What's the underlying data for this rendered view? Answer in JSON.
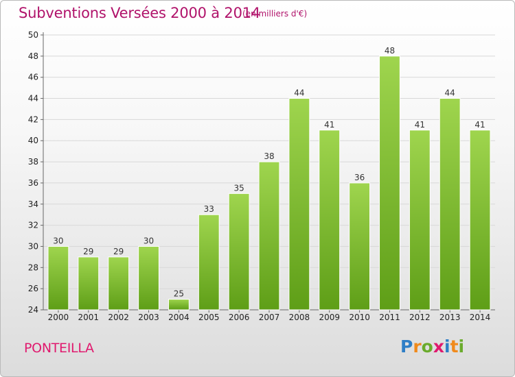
{
  "header": {
    "title": "Subventions Versées 2000 à 2014",
    "unit_note": "(en milliers d'€)"
  },
  "footer": {
    "town": "PONTEILLA",
    "logo_text": "Proxiti",
    "logo_letters": [
      {
        "ch": "P",
        "color": "#2e7ec6"
      },
      {
        "ch": "r",
        "color": "#f08a1c"
      },
      {
        "ch": "o",
        "color": "#6aab2c"
      },
      {
        "ch": "x",
        "color": "#e0196e"
      },
      {
        "ch": "i",
        "color": "#2e7ec6"
      },
      {
        "ch": "t",
        "color": "#f08a1c"
      },
      {
        "ch": "i",
        "color": "#6aab2c"
      }
    ]
  },
  "chart_data": {
    "type": "bar",
    "title": "Subventions Versées 2000 à 2014",
    "subtitle": "(en milliers d'€)",
    "categories": [
      "2000",
      "2001",
      "2002",
      "2003",
      "2004",
      "2005",
      "2006",
      "2007",
      "2008",
      "2009",
      "2010",
      "2011",
      "2012",
      "2013",
      "2014"
    ],
    "values": [
      30,
      29,
      29,
      30,
      25,
      33,
      35,
      38,
      44,
      41,
      36,
      48,
      41,
      44,
      41
    ],
    "ylim": [
      24,
      50
    ],
    "yticks": [
      24,
      26,
      28,
      30,
      32,
      34,
      36,
      38,
      40,
      42,
      44,
      46,
      48,
      50
    ],
    "grid": true,
    "bar_color_top": "#9fd54e",
    "bar_color_bottom": "#5e9e17",
    "data_labels": true
  }
}
